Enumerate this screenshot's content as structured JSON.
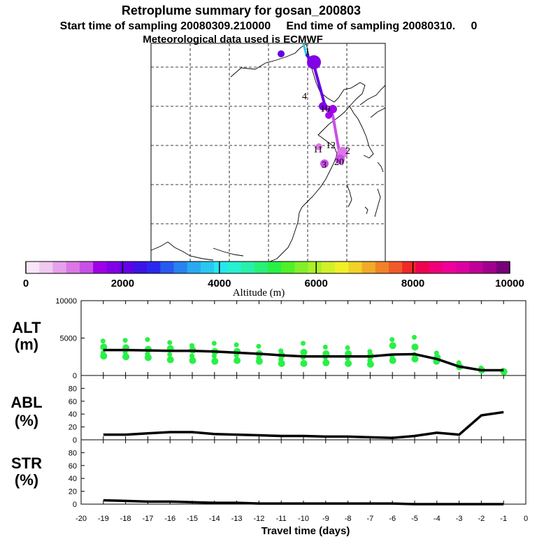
{
  "titles": {
    "line1": "Retroplume summary for gosan_200803",
    "line2": "Start time of sampling 20080309.210000     End time of sampling 20080310.     0",
    "line3": "Meteorological data used is ECMWF"
  },
  "colorbar": {
    "label": "Altitude (m)",
    "ticks": [
      "0",
      "2000",
      "4000",
      "6000",
      "8000",
      "10000"
    ],
    "colors": [
      "#f8e6f8",
      "#f0c8f0",
      "#e6a0ec",
      "#dc78e6",
      "#c850e6",
      "#a000e6",
      "#8200e6",
      "#6400e6",
      "#3c14e6",
      "#2828f0",
      "#285af0",
      "#2882f0",
      "#28aaf0",
      "#28c8f0",
      "#28e6f0",
      "#28f0d2",
      "#28f0aa",
      "#28f078",
      "#28f046",
      "#50f028",
      "#82f028",
      "#aaf028",
      "#d2f028",
      "#f0f028",
      "#f0d228",
      "#f0aa28",
      "#f08228",
      "#f05a28",
      "#f02828",
      "#f00050",
      "#f00078",
      "#f0009a",
      "#dc00a0",
      "#c00096",
      "#a0008c",
      "#780078"
    ]
  },
  "map": {
    "markers": [
      {
        "label": "1"
      },
      {
        "label": "4"
      },
      {
        "label": "10"
      },
      {
        "label": "11"
      },
      {
        "label": "12"
      },
      {
        "label": "2"
      },
      {
        "label": "20"
      },
      {
        "label": "3"
      }
    ]
  },
  "panels": {
    "alt": {
      "label_top": "ALT",
      "label_bottom": "(m)"
    },
    "abl": {
      "label_top": "ABL",
      "label_bottom": "(%)"
    },
    "str": {
      "label_top": "STR",
      "label_bottom": "(%)"
    }
  },
  "xaxis": {
    "label": "Travel time (days)",
    "ticks": [
      "-20",
      "-19",
      "-18",
      "-17",
      "-16",
      "-15",
      "-14",
      "-13",
      "-12",
      "-11",
      "-10",
      "-9",
      "-8",
      "-7",
      "-6",
      "-5",
      "-4",
      "-3",
      "-2",
      "-1",
      "0"
    ]
  },
  "chart_data": [
    {
      "type": "line",
      "title": "ALT",
      "xlabel": "Travel time (days)",
      "ylabel": "ALT (m)",
      "xlim": [
        -20,
        0
      ],
      "ylim": [
        0,
        10000
      ],
      "yticks": [
        0,
        5000,
        10000
      ],
      "x": [
        -19,
        -18,
        -17,
        -16,
        -15,
        -14,
        -13,
        -12,
        -11,
        -10,
        -9,
        -8,
        -7,
        -6,
        -5,
        -4,
        -3,
        -2,
        -1
      ],
      "series": [
        {
          "name": "mean altitude",
          "values": [
            3400,
            3400,
            3350,
            3300,
            3300,
            3200,
            3050,
            2900,
            2700,
            2550,
            2550,
            2550,
            2550,
            2800,
            2850,
            2200,
            1200,
            700,
            700
          ]
        }
      ],
      "scatter": [
        {
          "x": -19,
          "ys": [
            4600,
            3800,
            3000,
            2600
          ]
        },
        {
          "x": -18,
          "ys": [
            4700,
            3700,
            3100,
            2500
          ]
        },
        {
          "x": -17,
          "ys": [
            4800,
            3500,
            2900,
            2400
          ]
        },
        {
          "x": -16,
          "ys": [
            4400,
            3600,
            2800,
            2100
          ]
        },
        {
          "x": -15,
          "ys": [
            4000,
            3400,
            2600,
            2000
          ]
        },
        {
          "x": -14,
          "ys": [
            4300,
            3200,
            2600,
            1900
          ]
        },
        {
          "x": -13,
          "ys": [
            4100,
            3200,
            2700,
            2000
          ]
        },
        {
          "x": -12,
          "ys": [
            3900,
            2900,
            2300,
            1900
          ]
        },
        {
          "x": -11,
          "ys": [
            3300,
            2700,
            2100,
            1600
          ]
        },
        {
          "x": -10,
          "ys": [
            4300,
            3100,
            2400,
            1600
          ]
        },
        {
          "x": -9,
          "ys": [
            3800,
            2900,
            2400,
            1700
          ]
        },
        {
          "x": -8,
          "ys": [
            3700,
            2900,
            2300,
            1600
          ]
        },
        {
          "x": -7,
          "ys": [
            3200,
            2600,
            2000,
            1500
          ]
        },
        {
          "x": -6,
          "ys": [
            4800,
            4000,
            2600,
            2000
          ]
        },
        {
          "x": -5,
          "ys": [
            5100,
            3800,
            2800,
            2200
          ]
        },
        {
          "x": -4,
          "ys": [
            3000,
            2400,
            1900
          ]
        },
        {
          "x": -3,
          "ys": [
            1700,
            1200
          ]
        },
        {
          "x": -2,
          "ys": [
            1000,
            700
          ]
        },
        {
          "x": -1,
          "ys": [
            700,
            500
          ]
        }
      ]
    },
    {
      "type": "line",
      "title": "ABL",
      "ylabel": "ABL (%)",
      "xlim": [
        -20,
        0
      ],
      "ylim": [
        0,
        100
      ],
      "yticks": [
        0,
        20,
        40,
        60,
        80
      ],
      "x": [
        -19,
        -18,
        -17,
        -16,
        -15,
        -14,
        -13,
        -12,
        -11,
        -10,
        -9,
        -8,
        -7,
        -6,
        -5,
        -4,
        -3,
        -2,
        -1
      ],
      "series": [
        {
          "name": "ABL fraction",
          "values": [
            8,
            8,
            10,
            12,
            12,
            9,
            8,
            7,
            6,
            6,
            5,
            5,
            4,
            3,
            6,
            11,
            8,
            38,
            43
          ]
        }
      ]
    },
    {
      "type": "line",
      "title": "STR",
      "ylabel": "STR (%)",
      "xlim": [
        -20,
        0
      ],
      "ylim": [
        0,
        100
      ],
      "yticks": [
        0,
        20,
        40,
        60,
        80
      ],
      "x": [
        -19,
        -18,
        -17,
        -16,
        -15,
        -14,
        -13,
        -12,
        -11,
        -10,
        -9,
        -8,
        -7,
        -6,
        -5,
        -4,
        -3,
        -2,
        -1
      ],
      "series": [
        {
          "name": "stratospheric fraction",
          "values": [
            6,
            5,
            4,
            4,
            3,
            2,
            2,
            1,
            1,
            1,
            1,
            1,
            1,
            1,
            0,
            0,
            0,
            0,
            0
          ]
        }
      ]
    }
  ]
}
